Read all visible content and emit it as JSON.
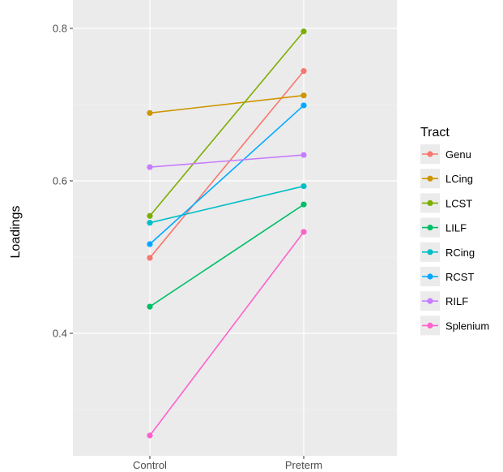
{
  "chart_data": {
    "type": "line",
    "xlabel": "",
    "ylabel": "Loadings",
    "categories": [
      "Control",
      "Preterm"
    ],
    "ylim": [
      0.24,
      0.82
    ],
    "yticks": [
      0.4,
      0.6,
      0.8
    ],
    "ytick_labels": [
      "0.4",
      "0.6",
      "0.8"
    ],
    "grid": true,
    "legend": {
      "title": "Tract",
      "position": "right"
    },
    "series": [
      {
        "name": "Genu",
        "color": "#F8766D",
        "values": [
          0.499,
          0.744
        ]
      },
      {
        "name": "LCing",
        "color": "#CD9600",
        "values": [
          0.689,
          0.712
        ]
      },
      {
        "name": "LCST",
        "color": "#7CAE00",
        "values": [
          0.554,
          0.796
        ]
      },
      {
        "name": "LILF",
        "color": "#00BE67",
        "values": [
          0.435,
          0.569
        ]
      },
      {
        "name": "RCing",
        "color": "#00BFC4",
        "values": [
          0.545,
          0.593
        ]
      },
      {
        "name": "RCST",
        "color": "#00A9FF",
        "values": [
          0.517,
          0.699
        ]
      },
      {
        "name": "RILF",
        "color": "#C77CFF",
        "values": [
          0.618,
          0.634
        ]
      },
      {
        "name": "Splenium",
        "color": "#FF61CC",
        "values": [
          0.266,
          0.533
        ]
      }
    ]
  }
}
